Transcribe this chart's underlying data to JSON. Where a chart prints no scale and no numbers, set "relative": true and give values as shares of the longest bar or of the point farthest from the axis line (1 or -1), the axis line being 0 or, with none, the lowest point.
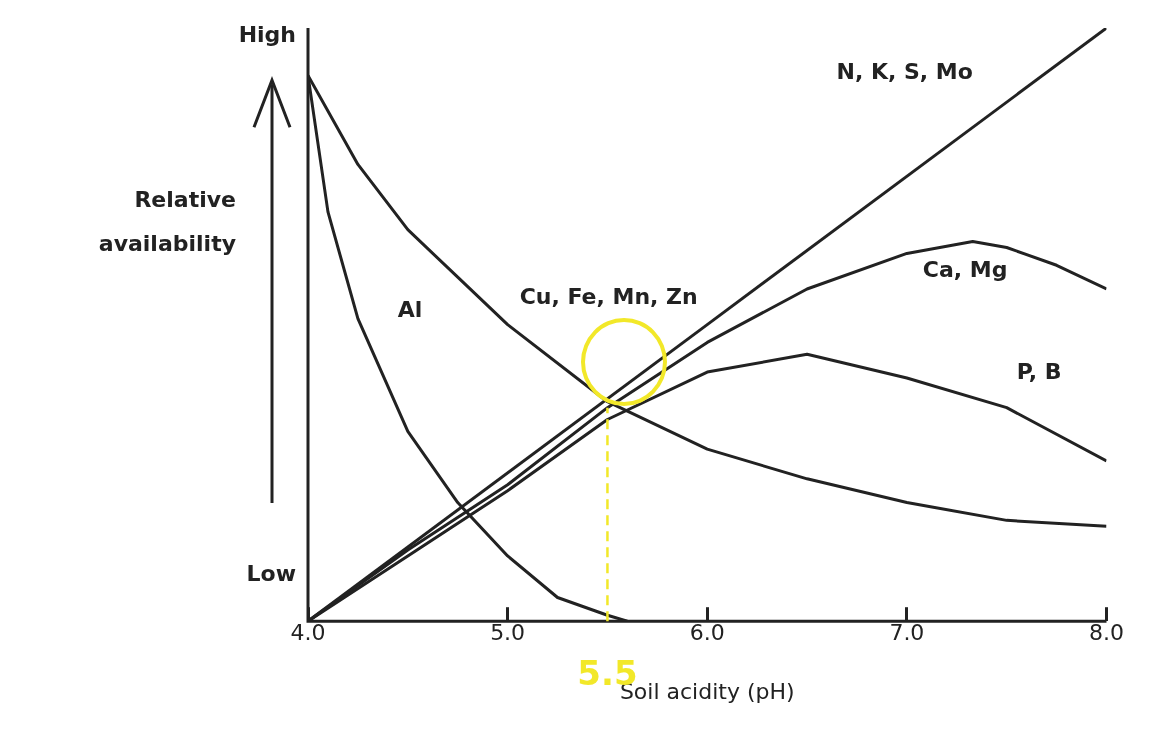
{
  "chart_data": {
    "type": "line",
    "relative": true,
    "xlabel": "Soil acidity (pH)",
    "ylabel": "Relative availability",
    "legend": false,
    "grid": false,
    "marker": "none",
    "line_style": "solid",
    "xlim": [
      4,
      8
    ],
    "xticks": [
      {
        "value": 4,
        "label": "4.0"
      },
      {
        "value": 5,
        "label": "5.0"
      },
      {
        "value": 6,
        "label": "6.0"
      },
      {
        "value": 7,
        "label": "7.0"
      },
      {
        "value": 8,
        "label": "8.0"
      }
    ],
    "annotations": [
      "High",
      "Low"
    ],
    "ref_lines": [
      {
        "axis": "x",
        "value": 5.5,
        "label": "5.5",
        "color": "#f2e829",
        "line_style": "dashed"
      }
    ],
    "series": [
      {
        "name": "N, K, S, Mo",
        "color": "#222222",
        "x": [
          4,
          6,
          8
        ],
        "values": [
          0,
          0.5,
          1
        ]
      },
      {
        "name": "Cu, Fe, Mn, Zn",
        "color": "#222222",
        "x": [
          4,
          4.25,
          4.5,
          4.75,
          5,
          5.5,
          6,
          6.5,
          7,
          7.5,
          8
        ],
        "values": [
          0.92,
          0.77,
          0.66,
          0.58,
          0.5,
          0.37,
          0.29,
          0.24,
          0.2,
          0.17,
          0.16
        ]
      },
      {
        "name": "Ca, Mg",
        "color": "#222222",
        "x": [
          4,
          4.5,
          5,
          5.5,
          6,
          6.5,
          7,
          7.33,
          7.5,
          7.75,
          8
        ],
        "values": [
          0,
          0.12,
          0.23,
          0.36,
          0.47,
          0.56,
          0.62,
          0.64,
          0.63,
          0.6,
          0.56
        ]
      },
      {
        "name": "P, B",
        "color": "#222222",
        "x": [
          4,
          4.5,
          5,
          5.5,
          6,
          6.5,
          7,
          7.5,
          8
        ],
        "values": [
          0,
          0.11,
          0.22,
          0.34,
          0.42,
          0.45,
          0.41,
          0.36,
          0.27
        ]
      },
      {
        "name": "Al",
        "color": "#222222",
        "x": [
          4,
          4.1,
          4.25,
          4.5,
          4.75,
          5,
          5.25,
          5.5,
          5.6
        ],
        "values": [
          0.92,
          0.69,
          0.51,
          0.32,
          0.2,
          0.11,
          0.04,
          0.01,
          0
        ]
      }
    ]
  }
}
